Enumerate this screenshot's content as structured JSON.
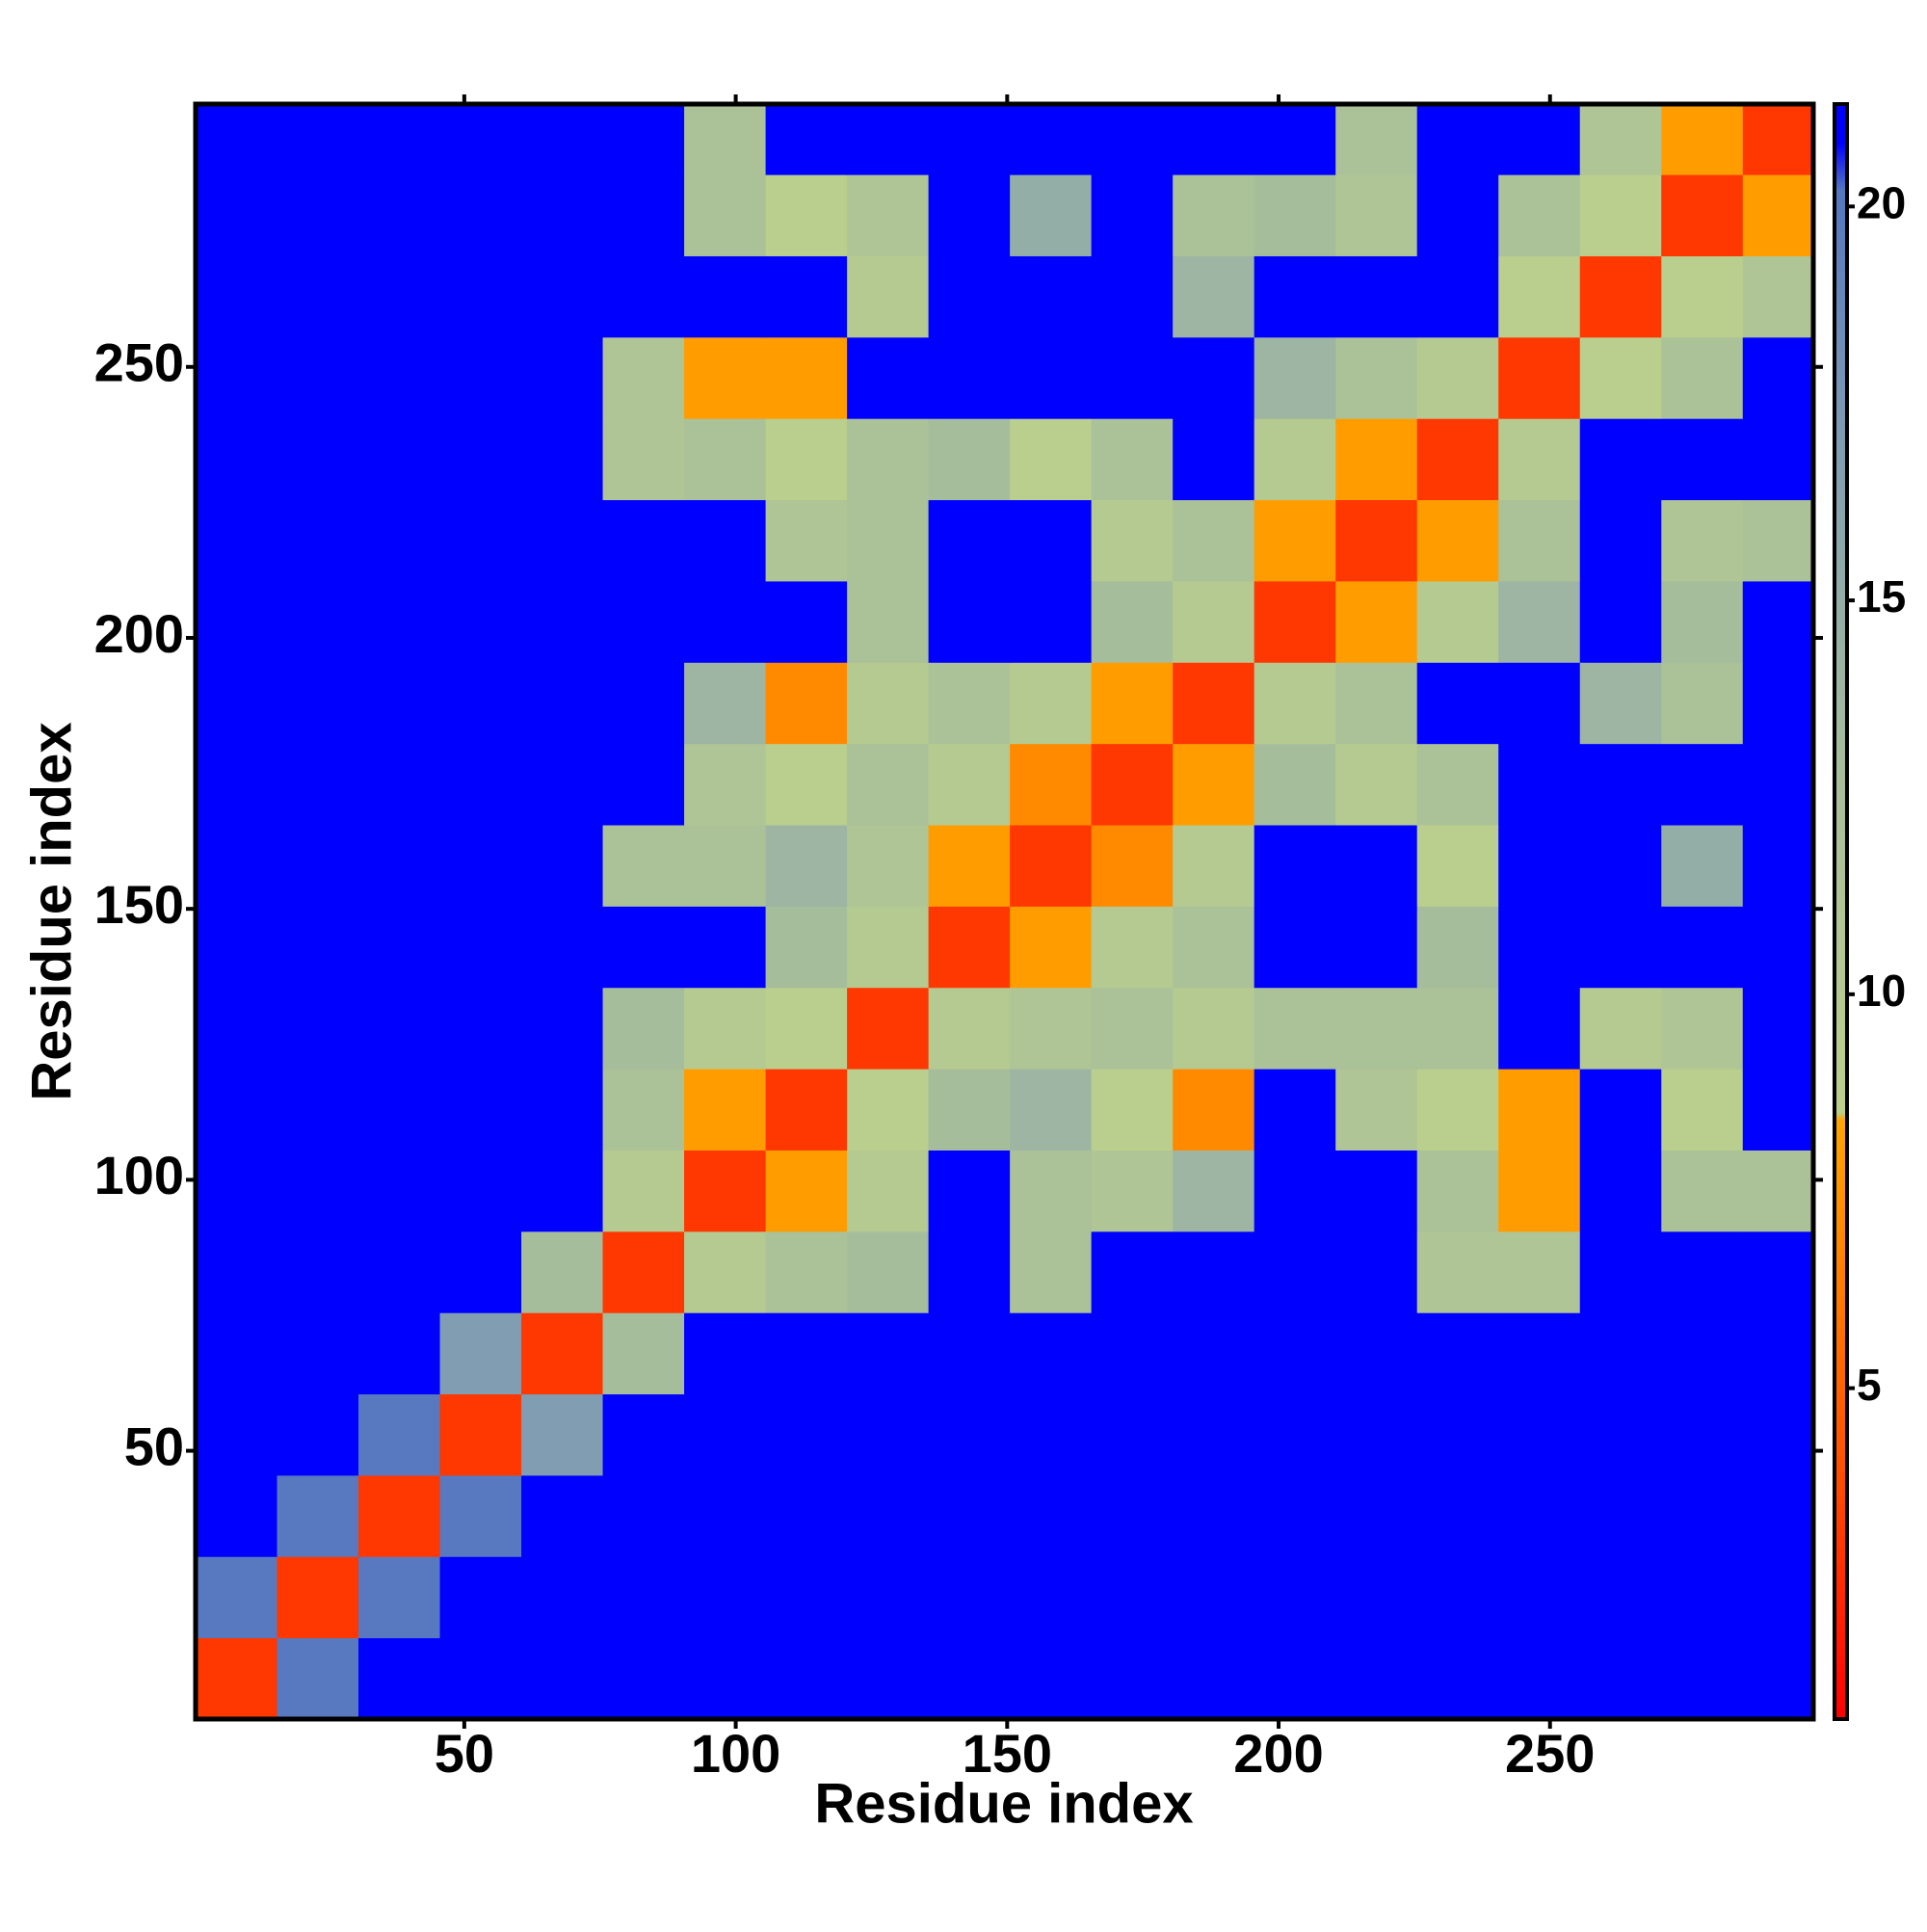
{
  "chart_data": {
    "type": "heatmap",
    "xlabel": "Residue index",
    "ylabel": "Residue index",
    "xlim": [
      0.5,
      298.5
    ],
    "ylim": [
      0.5,
      298.5
    ],
    "xticks": [
      50,
      100,
      150,
      200,
      250
    ],
    "yticks": [
      50,
      100,
      150,
      200,
      250
    ],
    "x_bins": [
      0.5,
      15.5,
      30.5,
      45.5,
      60.5,
      75.5,
      90.5,
      105.5,
      120.5,
      135.5,
      150.5,
      165.5,
      180.5,
      195.5,
      210.5,
      225.5,
      240.5,
      255.5,
      270.5,
      285.5,
      298.5
    ],
    "y_bins": [
      0.5,
      15.5,
      30.5,
      45.5,
      60.5,
      75.5,
      90.5,
      105.5,
      120.5,
      135.5,
      150.5,
      165.5,
      180.5,
      195.5,
      210.5,
      225.5,
      240.5,
      255.5,
      270.5,
      285.5,
      298.5
    ],
    "values": [
      [
        3,
        20,
        21,
        21,
        21,
        21,
        21,
        21,
        21,
        21,
        21,
        21,
        21,
        21,
        21,
        21,
        21,
        21,
        21,
        21
      ],
      [
        20,
        3,
        20,
        21,
        21,
        21,
        21,
        21,
        21,
        21,
        21,
        21,
        21,
        21,
        21,
        21,
        21,
        21,
        21,
        21
      ],
      [
        21,
        20,
        3,
        20,
        21,
        21,
        21,
        21,
        21,
        21,
        21,
        21,
        21,
        21,
        21,
        21,
        21,
        21,
        21,
        21
      ],
      [
        21,
        21,
        20,
        3,
        17,
        21,
        21,
        21,
        21,
        21,
        21,
        21,
        21,
        21,
        21,
        21,
        21,
        21,
        21,
        21
      ],
      [
        21,
        21,
        21,
        17,
        3,
        13,
        21,
        21,
        21,
        21,
        21,
        21,
        21,
        21,
        21,
        21,
        21,
        21,
        21,
        21
      ],
      [
        21,
        21,
        21,
        21,
        13,
        3,
        10,
        12,
        13,
        21,
        12,
        21,
        21,
        21,
        21,
        11,
        11,
        21,
        21,
        21
      ],
      [
        21,
        21,
        21,
        21,
        21,
        10,
        3,
        8,
        10,
        21,
        12,
        11,
        14,
        21,
        21,
        12,
        8,
        21,
        12,
        12
      ],
      [
        21,
        21,
        21,
        21,
        21,
        12,
        8,
        3,
        9,
        13,
        14,
        9,
        7,
        21,
        11,
        9,
        8,
        21,
        9,
        21
      ],
      [
        21,
        21,
        21,
        21,
        21,
        13,
        10,
        9,
        3,
        10,
        11,
        12,
        10,
        12,
        12,
        12,
        21,
        10,
        11,
        21
      ],
      [
        21,
        21,
        21,
        21,
        21,
        21,
        21,
        13,
        10,
        3,
        8,
        10,
        12,
        21,
        21,
        13,
        21,
        21,
        21,
        21
      ],
      [
        21,
        21,
        21,
        21,
        21,
        12,
        12,
        14,
        11,
        8,
        3,
        7,
        10,
        21,
        21,
        9,
        21,
        21,
        15,
        21
      ],
      [
        21,
        21,
        21,
        21,
        21,
        21,
        11,
        9,
        12,
        10,
        7,
        3,
        8,
        13,
        10,
        12,
        21,
        21,
        21,
        21
      ],
      [
        21,
        21,
        21,
        21,
        21,
        21,
        14,
        7,
        10,
        12,
        10,
        8,
        3,
        10,
        12,
        21,
        21,
        14,
        12,
        21
      ],
      [
        21,
        21,
        21,
        21,
        21,
        21,
        21,
        21,
        12,
        21,
        21,
        13,
        10,
        3,
        8,
        10,
        14,
        21,
        13,
        21
      ],
      [
        21,
        21,
        21,
        21,
        21,
        21,
        21,
        11,
        12,
        21,
        21,
        10,
        12,
        8,
        3,
        8,
        12,
        21,
        11,
        12
      ],
      [
        21,
        21,
        21,
        21,
        21,
        11,
        12,
        9,
        12,
        13,
        9,
        12,
        21,
        10,
        8,
        3,
        10,
        21,
        21,
        21
      ],
      [
        21,
        21,
        21,
        21,
        21,
        11,
        8,
        8,
        21,
        21,
        21,
        21,
        21,
        14,
        12,
        10,
        3,
        9,
        12,
        21
      ],
      [
        21,
        21,
        21,
        21,
        21,
        21,
        21,
        21,
        10,
        21,
        21,
        21,
        14,
        21,
        21,
        21,
        9,
        3,
        9,
        11
      ],
      [
        21,
        21,
        21,
        21,
        21,
        21,
        12,
        9,
        11,
        21,
        15,
        21,
        12,
        13,
        11,
        21,
        12,
        9,
        3,
        8
      ],
      [
        21,
        21,
        21,
        21,
        21,
        21,
        12,
        21,
        21,
        21,
        21,
        21,
        21,
        21,
        12,
        21,
        21,
        11,
        8,
        3
      ]
    ],
    "clim": [
      0.8,
      21.3
    ],
    "cticks": [
      5,
      10,
      15,
      20
    ],
    "colormap": [
      {
        "value": 0.8,
        "color": "#ff0000"
      },
      {
        "value": 4,
        "color": "#ff5000"
      },
      {
        "value": 8.4,
        "color": "#ffa500"
      },
      {
        "value": 8.5,
        "color": "#bcd08c"
      },
      {
        "value": 13,
        "color": "#a6bd9c"
      },
      {
        "value": 17,
        "color": "#809db2"
      },
      {
        "value": 20.2,
        "color": "#5577c0"
      },
      {
        "value": 20.8,
        "color": "#0000ff"
      },
      {
        "value": 21.3,
        "color": "#0000ff"
      }
    ]
  }
}
